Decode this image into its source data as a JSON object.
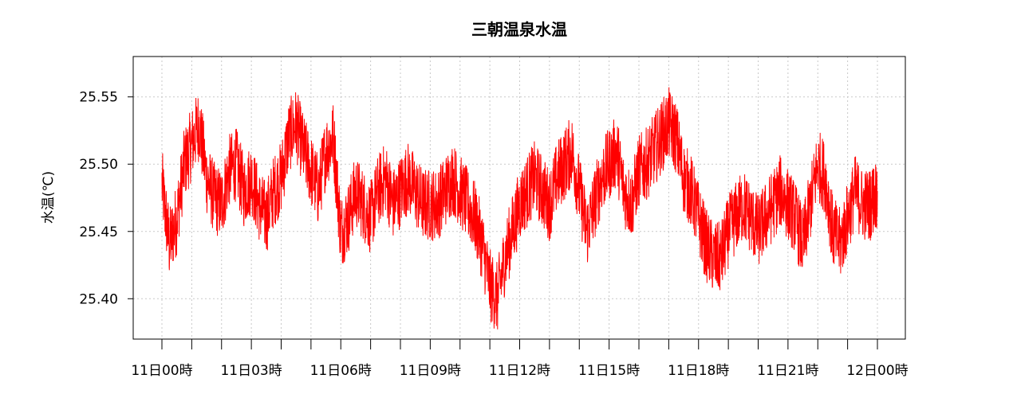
{
  "chart_data": {
    "type": "line",
    "title": "三朝温泉水温",
    "xlabel": "",
    "ylabel": "水温(℃)",
    "xlim": [
      0,
      24
    ],
    "ylim": [
      25.37,
      25.58
    ],
    "y_ticks": [
      25.4,
      25.45,
      25.5,
      25.55
    ],
    "y_tick_labels": [
      "25.40",
      "25.45",
      "25.50",
      "25.55"
    ],
    "x_ticks_hours": [
      0,
      1,
      2,
      3,
      4,
      5,
      6,
      7,
      8,
      9,
      10,
      11,
      12,
      13,
      14,
      15,
      16,
      17,
      18,
      19,
      20,
      21,
      22,
      23,
      24
    ],
    "x_tick_labels": [
      {
        "hour": 0,
        "label": "11日00時"
      },
      {
        "hour": 3,
        "label": "11日03時"
      },
      {
        "hour": 6,
        "label": "11日06時"
      },
      {
        "hour": 9,
        "label": "11日09時"
      },
      {
        "hour": 12,
        "label": "11日12時"
      },
      {
        "hour": 15,
        "label": "11日15時"
      },
      {
        "hour": 18,
        "label": "11日18時"
      },
      {
        "hour": 21,
        "label": "11日21時"
      },
      {
        "hour": 24,
        "label": "12日00時"
      }
    ],
    "grid": true,
    "line_color": "#ff0000",
    "series": [
      {
        "name": "",
        "x": [
          0.0,
          0.25,
          0.5,
          0.75,
          1.0,
          1.25,
          1.5,
          1.75,
          2.0,
          2.25,
          2.5,
          2.75,
          3.0,
          3.25,
          3.5,
          3.75,
          4.0,
          4.25,
          4.5,
          4.75,
          5.0,
          5.25,
          5.5,
          5.75,
          6.0,
          6.25,
          6.5,
          6.75,
          7.0,
          7.25,
          7.5,
          7.75,
          8.0,
          8.25,
          8.5,
          8.75,
          9.0,
          9.25,
          9.5,
          9.75,
          10.0,
          10.25,
          10.5,
          10.75,
          11.0,
          11.25,
          11.5,
          11.75,
          12.0,
          12.25,
          12.5,
          12.75,
          13.0,
          13.25,
          13.5,
          13.75,
          14.0,
          14.25,
          14.5,
          14.75,
          15.0,
          15.25,
          15.5,
          15.75,
          16.0,
          16.25,
          16.5,
          16.75,
          17.0,
          17.25,
          17.5,
          17.75,
          18.0,
          18.25,
          18.5,
          18.75,
          19.0,
          19.25,
          19.5,
          19.75,
          20.0,
          20.25,
          20.5,
          20.75,
          21.0,
          21.25,
          21.5,
          21.75,
          22.0,
          22.25,
          22.5,
          22.75,
          23.0,
          23.25,
          23.5,
          23.75,
          24.0
        ],
        "values": [
          25.485,
          25.44,
          25.46,
          25.5,
          25.515,
          25.53,
          25.49,
          25.475,
          25.47,
          25.495,
          25.5,
          25.48,
          25.49,
          25.47,
          25.46,
          25.48,
          25.49,
          25.52,
          25.53,
          25.51,
          25.495,
          25.48,
          25.51,
          25.52,
          25.45,
          25.46,
          25.48,
          25.47,
          25.46,
          25.48,
          25.49,
          25.47,
          25.48,
          25.49,
          25.48,
          25.47,
          25.47,
          25.47,
          25.48,
          25.49,
          25.48,
          25.47,
          25.46,
          25.44,
          25.41,
          25.4,
          25.43,
          25.45,
          25.47,
          25.48,
          25.49,
          25.48,
          25.47,
          25.49,
          25.5,
          25.51,
          25.48,
          25.45,
          25.47,
          25.49,
          25.5,
          25.51,
          25.48,
          25.47,
          25.495,
          25.5,
          25.51,
          25.52,
          25.53,
          25.52,
          25.49,
          25.48,
          25.46,
          25.44,
          25.43,
          25.43,
          25.45,
          25.46,
          25.47,
          25.46,
          25.45,
          25.46,
          25.47,
          25.48,
          25.47,
          25.46,
          25.44,
          25.47,
          25.5,
          25.49,
          25.45,
          25.44,
          25.46,
          25.48,
          25.47,
          25.47,
          25.48
        ]
      }
    ]
  }
}
